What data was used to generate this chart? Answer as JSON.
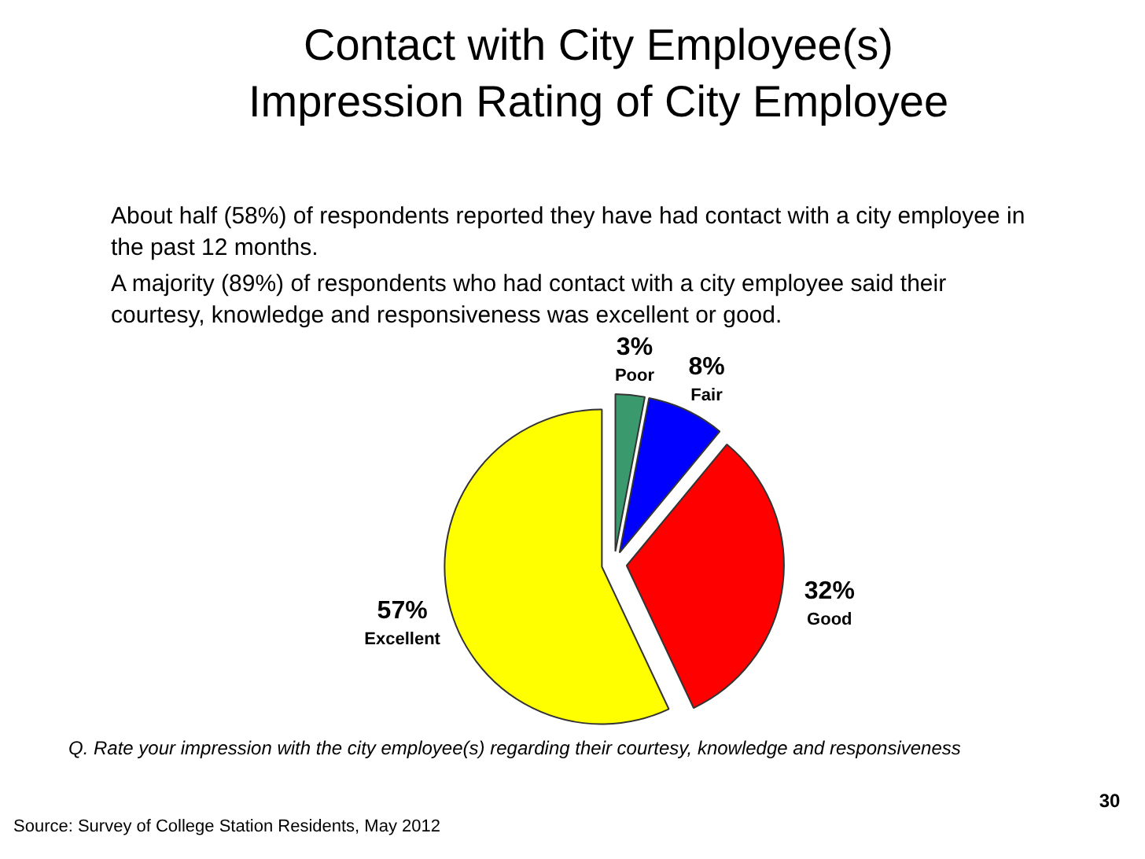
{
  "chart_data": {
    "type": "pie",
    "title": "Contact with City Employee(s)\nImpression Rating of City Employee",
    "categories": [
      "Poor",
      "Fair",
      "Good",
      "Excellent"
    ],
    "values": [
      3,
      8,
      32,
      57
    ],
    "value_labels": [
      "3%",
      "8%",
      "32%",
      "57%"
    ],
    "colors": [
      "#3a9a6e",
      "#0000ff",
      "#ff0000",
      "#ffff00"
    ],
    "annotations": [
      "About half (58%) of respondents reported they have had contact with a city employee in the past 12 months.",
      "A majority (89%) of respondents who had contact with a city employee said their courtesy, knowledge and responsiveness was excellent or good.",
      "Q. Rate your impression with the city employee(s) regarding their courtesy, knowledge and responsiveness",
      "Source: Survey of College Station Residents, May 2012",
      "30"
    ]
  }
}
